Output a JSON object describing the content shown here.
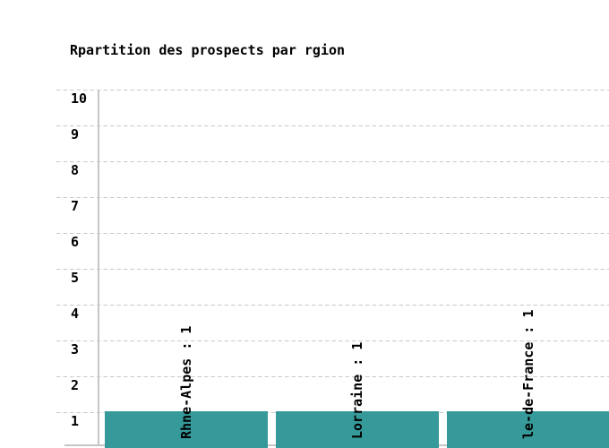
{
  "chart_data": {
    "type": "bar",
    "title": "Rpartition des prospects par rgion",
    "categories": [
      "Rhne-Alpes",
      "Lorraine",
      "le-de-France"
    ],
    "values": [
      1,
      1,
      1
    ],
    "bar_labels": [
      "Rhne-Alpes : 1",
      "Lorraine : 1",
      "le-de-France : 1"
    ],
    "y_ticks": [
      "10",
      "9",
      "8",
      "7",
      "6",
      "5",
      "4",
      "3",
      "2",
      "1"
    ],
    "ylim": [
      0,
      10
    ],
    "xlabel": "",
    "ylabel": "",
    "grid": "horizontal-dashed",
    "legend": "none",
    "colors": {
      "bar": "#359a99",
      "grid": "#c9c9c9",
      "axis": "#c6c6c6",
      "text": "#000000",
      "background": "#ffffff"
    }
  }
}
